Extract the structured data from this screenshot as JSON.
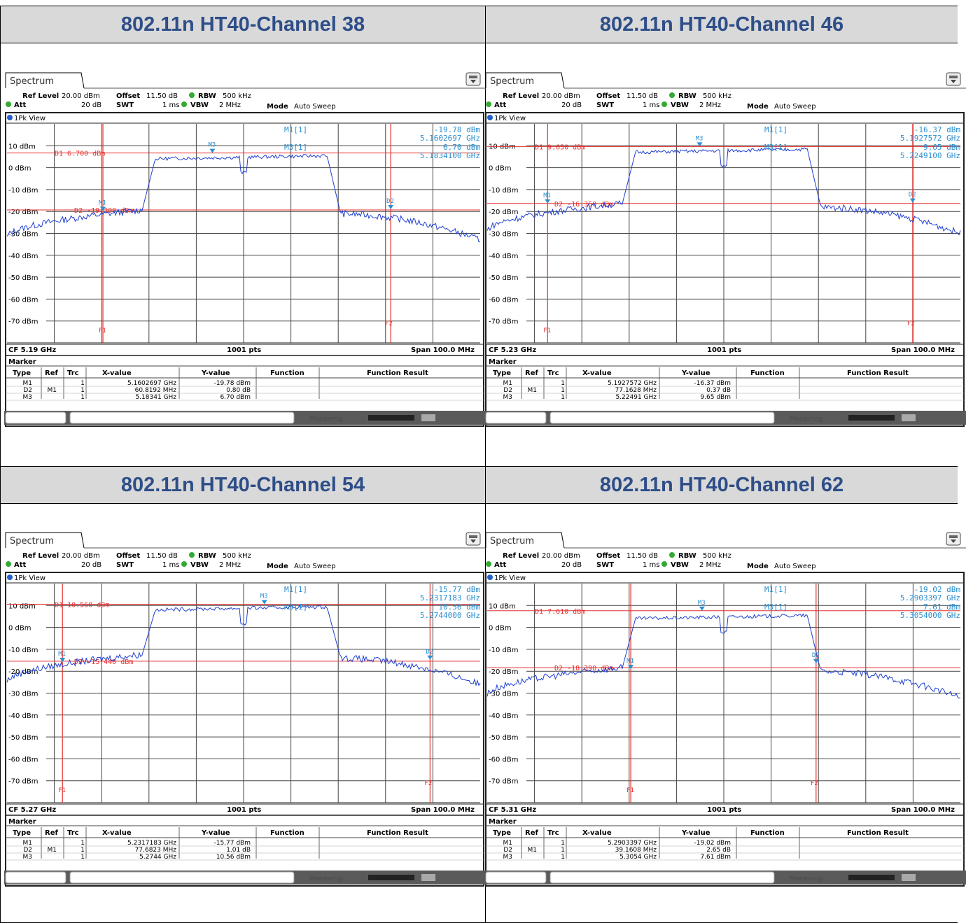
{
  "panels": [
    {
      "heading": "802.11n HT40-Channel 38",
      "tab": "Spectrum",
      "settings": {
        "ref_level": "20.00 dBm",
        "offset": "11.50 dB",
        "rbw": "500 kHz",
        "att": "20 dB",
        "swt": "1 ms",
        "vbw": "2 MHz",
        "mode": "Auto Sweep"
      },
      "view": "1Pk View",
      "readout": [
        {
          "label": "M1[1]",
          "value": "-19.78 dBm",
          "freq": "5.1602697 GHz"
        },
        {
          "label": "M3[1]",
          "value": "6.70 dBm",
          "freq": "5.1834100 GHz"
        }
      ],
      "d1_label": "D1  6.700 dBm",
      "d2_label": "D2  -19.300 dBm",
      "cf": "CF 5.19 GHz",
      "pts": "1001 pts",
      "span": "Span 100.0 MHz",
      "marker_table": [
        {
          "type": "M1",
          "ref": "",
          "trc": "1",
          "x": "5.1602697 GHz",
          "y": "-19.78 dBm",
          "fn": "",
          "fr": ""
        },
        {
          "type": "D2",
          "ref": "M1",
          "trc": "1",
          "x": "60.8192 MHz",
          "y": "0.80 dB",
          "fn": "",
          "fr": ""
        },
        {
          "type": "M3",
          "ref": "",
          "trc": "1",
          "x": "5.18341 GHz",
          "y": "6.70 dBm",
          "fn": "",
          "fr": ""
        }
      ],
      "status": "Measuring...",
      "chart_data": {
        "type": "line",
        "title": "802.11n HT40-Channel 38",
        "xlabel": "CF 5.19 GHz",
        "ylabel": "",
        "xlim": [
          5140,
          5240
        ],
        "ylim": [
          -80,
          20
        ],
        "yticks": [
          "10 dBm",
          "0 dBm",
          "-10 dBm",
          "-20 dBm",
          "-30 dBm",
          "-40 dBm",
          "-50 dBm",
          "-60 dBm",
          "-70 dBm"
        ],
        "center_freq": 5190,
        "occupied_lo": 5170,
        "occupied_hi": 5209,
        "inband_level": 6,
        "edge_level": -20,
        "notch_freq": 5190,
        "d1": 6.7,
        "d2": -19.3,
        "f1": 5160.27,
        "f2": 5221.09,
        "markers": [
          {
            "name": "M1",
            "x": 5160.27,
            "y": -19.78
          },
          {
            "name": "M3",
            "x": 5183.41,
            "y": 6.7
          },
          {
            "name": "D2",
            "x": 5221.09,
            "y": -18.98
          }
        ]
      }
    },
    {
      "heading": "802.11n HT40-Channel 46",
      "tab": "Spectrum",
      "settings": {
        "ref_level": "20.00 dBm",
        "offset": "11.50 dB",
        "rbw": "500 kHz",
        "att": "20 dB",
        "swt": "1 ms",
        "vbw": "2 MHz",
        "mode": "Auto Sweep"
      },
      "view": "1Pk View",
      "readout": [
        {
          "label": "M1[1]",
          "value": "-16.37 dBm",
          "freq": "5.1927572 GHz"
        },
        {
          "label": "M3[1]",
          "value": "9.65 dBm",
          "freq": "5.2249100 GHz"
        }
      ],
      "d1_label": "D1  9.650 dBm",
      "d2_label": "D2  -16.350 dBm",
      "cf": "CF 5.23 GHz",
      "pts": "1001 pts",
      "span": "Span 100.0 MHz",
      "marker_table": [
        {
          "type": "M1",
          "ref": "",
          "trc": "1",
          "x": "5.1927572 GHz",
          "y": "-16.37 dBm",
          "fn": "",
          "fr": ""
        },
        {
          "type": "D2",
          "ref": "M1",
          "trc": "1",
          "x": "77.1628 MHz",
          "y": "0.37 dB",
          "fn": "",
          "fr": ""
        },
        {
          "type": "M3",
          "ref": "",
          "trc": "1",
          "x": "5.22491 GHz",
          "y": "9.65 dBm",
          "fn": "",
          "fr": ""
        }
      ],
      "status": "Measuring...",
      "chart_data": {
        "type": "line",
        "title": "802.11n HT40-Channel 46",
        "xlabel": "CF 5.23 GHz",
        "ylabel": "",
        "xlim": [
          5180,
          5280
        ],
        "ylim": [
          -80,
          20
        ],
        "yticks": [
          "10 dBm",
          "0 dBm",
          "-10 dBm",
          "-20 dBm",
          "-30 dBm",
          "-40 dBm",
          "-50 dBm",
          "-60 dBm",
          "-70 dBm"
        ],
        "center_freq": 5230,
        "occupied_lo": 5210,
        "occupied_hi": 5249,
        "inband_level": 9,
        "edge_level": -17,
        "notch_freq": 5230,
        "d1": 9.65,
        "d2": -16.35,
        "f1": 5192.76,
        "f2": 5269.92,
        "markers": [
          {
            "name": "M1",
            "x": 5192.76,
            "y": -16.37
          },
          {
            "name": "M3",
            "x": 5224.91,
            "y": 9.65
          },
          {
            "name": "D2",
            "x": 5269.92,
            "y": -16.0
          }
        ]
      }
    },
    {
      "heading": "802.11n HT40-Channel 54",
      "tab": "Spectrum",
      "settings": {
        "ref_level": "20.00 dBm",
        "offset": "11.50 dB",
        "rbw": "500 kHz",
        "att": "20 dB",
        "swt": "1 ms",
        "vbw": "2 MHz",
        "mode": "Auto Sweep"
      },
      "view": "1Pk View",
      "readout": [
        {
          "label": "M1[1]",
          "value": "-15.77 dBm",
          "freq": "5.2317183 GHz"
        },
        {
          "label": "M3[1]",
          "value": "10.56 dBm",
          "freq": "5.2744000 GHz"
        }
      ],
      "d1_label": "D1  10.560 dBm",
      "d2_label": "D2  -15.440 dBm",
      "cf": "CF 5.27 GHz",
      "pts": "1001 pts",
      "span": "Span 100.0 MHz",
      "marker_table": [
        {
          "type": "M1",
          "ref": "",
          "trc": "1",
          "x": "5.2317183 GHz",
          "y": "-15.77 dBm",
          "fn": "",
          "fr": ""
        },
        {
          "type": "D2",
          "ref": "M1",
          "trc": "1",
          "x": "77.6823 MHz",
          "y": "1.01 dB",
          "fn": "",
          "fr": ""
        },
        {
          "type": "M3",
          "ref": "",
          "trc": "1",
          "x": "5.2744 GHz",
          "y": "10.56 dBm",
          "fn": "",
          "fr": ""
        }
      ],
      "status": "Measuring...",
      "chart_data": {
        "type": "line",
        "title": "802.11n HT40-Channel 54",
        "xlabel": "CF 5.27 GHz",
        "ylabel": "",
        "xlim": [
          5220,
          5320
        ],
        "ylim": [
          -80,
          20
        ],
        "yticks": [
          "10 dBm",
          "0 dBm",
          "-10 dBm",
          "-20 dBm",
          "-30 dBm",
          "-40 dBm",
          "-50 dBm",
          "-60 dBm",
          "-70 dBm"
        ],
        "center_freq": 5270,
        "occupied_lo": 5250,
        "occupied_hi": 5289,
        "inband_level": 10,
        "edge_level": -13,
        "notch_freq": 5270,
        "d1": 10.56,
        "d2": -15.44,
        "f1": 5231.72,
        "f2": 5309.4,
        "markers": [
          {
            "name": "M1",
            "x": 5231.72,
            "y": -15.77
          },
          {
            "name": "M3",
            "x": 5274.4,
            "y": 10.56
          },
          {
            "name": "D2",
            "x": 5309.4,
            "y": -14.76
          }
        ]
      }
    },
    {
      "heading": "802.11n HT40-Channel 62",
      "tab": "Spectrum",
      "settings": {
        "ref_level": "20.00 dBm",
        "offset": "11.50 dB",
        "rbw": "500 kHz",
        "att": "20 dB",
        "swt": "1 ms",
        "vbw": "2 MHz",
        "mode": "Auto Sweep"
      },
      "view": "1Pk View",
      "readout": [
        {
          "label": "M1[1]",
          "value": "-19.02 dBm",
          "freq": "5.2903397 GHz"
        },
        {
          "label": "M3[1]",
          "value": "7.61 dBm",
          "freq": "5.3054000 GHz"
        }
      ],
      "d1_label": "D1  7.610 dBm",
      "d2_label": "D2  -18.390 dBm",
      "cf": "CF 5.31 GHz",
      "pts": "1001 pts",
      "span": "Span 100.0 MHz",
      "marker_table": [
        {
          "type": "M1",
          "ref": "",
          "trc": "1",
          "x": "5.2903397 GHz",
          "y": "-19.02 dBm",
          "fn": "",
          "fr": ""
        },
        {
          "type": "D2",
          "ref": "M1",
          "trc": "1",
          "x": "39.1608 MHz",
          "y": "2.65 dB",
          "fn": "",
          "fr": ""
        },
        {
          "type": "M3",
          "ref": "",
          "trc": "1",
          "x": "5.3054 GHz",
          "y": "7.61 dBm",
          "fn": "",
          "fr": ""
        }
      ],
      "status": "Measuring...",
      "chart_data": {
        "type": "line",
        "title": "802.11n HT40-Channel 62",
        "xlabel": "CF 5.31 GHz",
        "ylabel": "",
        "xlim": [
          5260,
          5360
        ],
        "ylim": [
          -80,
          20
        ],
        "yticks": [
          "10 dBm",
          "0 dBm",
          "-10 dBm",
          "-20 dBm",
          "-30 dBm",
          "-40 dBm",
          "-50 dBm",
          "-60 dBm",
          "-70 dBm"
        ],
        "center_freq": 5310,
        "occupied_lo": 5290,
        "occupied_hi": 5329,
        "inband_level": 6,
        "edge_level": -19,
        "notch_freq": 5310,
        "d1": 7.61,
        "d2": -18.39,
        "f1": 5290.34,
        "f2": 5329.5,
        "markers": [
          {
            "name": "M1",
            "x": 5290.34,
            "y": -19.02
          },
          {
            "name": "M3",
            "x": 5305.4,
            "y": 7.61
          },
          {
            "name": "D2",
            "x": 5329.5,
            "y": -16.37
          }
        ]
      }
    }
  ],
  "colors": {
    "trace": "#1f3fd0",
    "lines": "#e53030",
    "marker": "#2a8fd0",
    "heading_text": "#2e4e88",
    "heading_bg": "#d9d9d9"
  }
}
